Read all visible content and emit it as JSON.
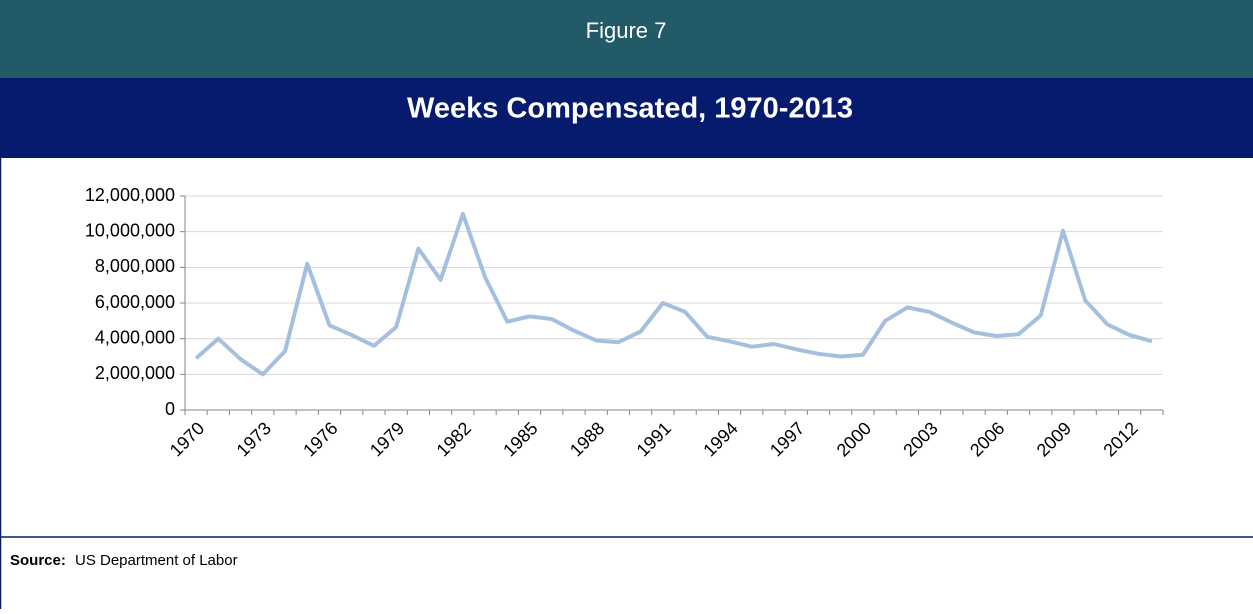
{
  "header": {
    "label": "Figure 7"
  },
  "chart_data": {
    "type": "line",
    "title": "Weeks Compensated, 1970-2013",
    "categories": [
      "1970",
      null,
      null,
      "1973",
      null,
      null,
      "1976",
      null,
      null,
      "1979",
      null,
      null,
      "1982",
      null,
      null,
      "1985",
      null,
      null,
      "1988",
      null,
      null,
      "1991",
      null,
      null,
      "1994",
      null,
      null,
      "1997",
      null,
      null,
      "2000",
      null,
      null,
      "2003",
      null,
      null,
      "2006",
      null,
      null,
      "2009",
      null,
      null,
      "2012",
      null
    ],
    "series": [
      {
        "name": "Weeks Compensated",
        "color": "#a5c0de",
        "values": [
          2900000,
          4000000,
          2850000,
          2000000,
          3300000,
          8200000,
          4750000,
          4200000,
          3600000,
          4650000,
          9050000,
          7300000,
          11000000,
          7450000,
          4950000,
          5250000,
          5100000,
          4450000,
          3900000,
          3800000,
          4400000,
          6000000,
          5500000,
          4100000,
          3850000,
          3550000,
          3700000,
          3400000,
          3150000,
          3000000,
          3100000,
          5000000,
          5750000,
          5500000,
          4900000,
          4350000,
          4150000,
          4250000,
          5300000,
          10050000,
          6150000,
          4800000,
          4200000,
          3850000
        ]
      }
    ],
    "ylim": [
      0,
      12000000
    ],
    "yticks": [
      0,
      {
        "value": 2000000,
        "label": "2,000,000"
      },
      {
        "value": 4000000,
        "label": "4,000,000"
      },
      {
        "value": 6000000,
        "label": "6,000,000"
      },
      {
        "value": 8000000,
        "label": "8,000,000"
      },
      {
        "value": 10000000,
        "label": "10,000,000"
      },
      {
        "value": 12000000,
        "label": "12,000,000"
      }
    ],
    "grid": true
  },
  "source": {
    "label": "Source:",
    "text": "US Department of Labor"
  }
}
